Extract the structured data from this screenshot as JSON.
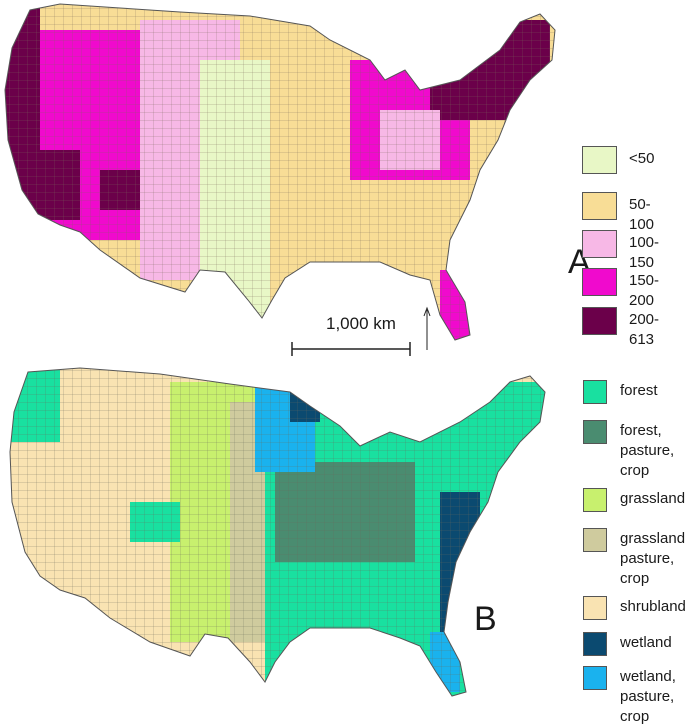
{
  "panelA": {
    "letter": "A",
    "legend": [
      {
        "label": "<50",
        "color": "#e8f7c6"
      },
      {
        "label": "50-100",
        "color": "#f8dd96"
      },
      {
        "label": "100-150",
        "color": "#f7b8e6"
      },
      {
        "label": "150-200",
        "color": "#f00acd"
      },
      {
        "label": "200-613",
        "color": "#6b004a"
      }
    ],
    "scale_bar": "1,000 km"
  },
  "panelB": {
    "letter": "B",
    "legend": [
      {
        "label": "forest",
        "color": "#19e0a0"
      },
      {
        "label": "forest,\npasture,\ncrop",
        "color": "#4a8c70"
      },
      {
        "label": "grassland",
        "color": "#c8f06e"
      },
      {
        "label": "grassland,\npasture,\ncrop",
        "color": "#cfcb9e"
      },
      {
        "label": "shrubland",
        "color": "#f9e3b2"
      },
      {
        "label": "wetland",
        "color": "#0b4a70"
      },
      {
        "label": "wetland,\npasture,\ncrop",
        "color": "#1ab2ee"
      }
    ]
  },
  "icons": {
    "north_arrow": "north-arrow-icon"
  }
}
